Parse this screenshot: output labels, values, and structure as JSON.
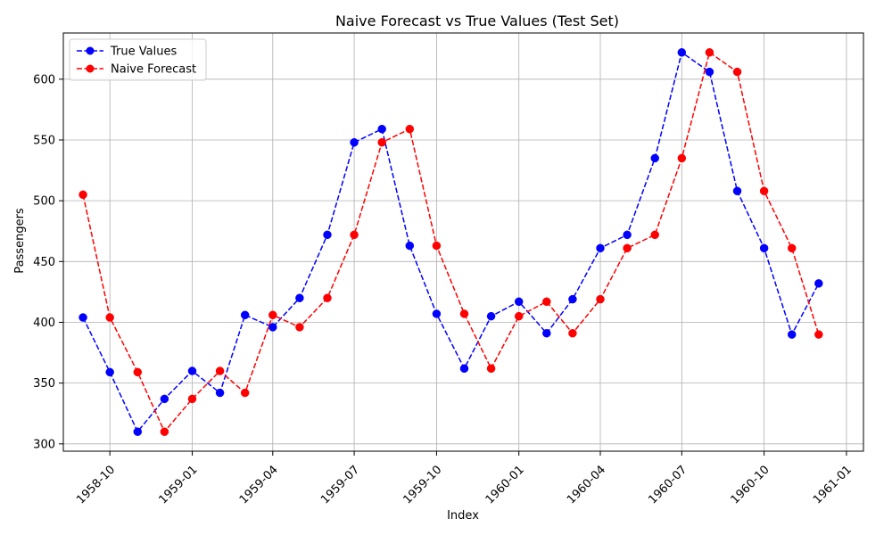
{
  "chart_data": {
    "type": "line",
    "title": "Naive Forecast vs True Values (Test Set)",
    "xlabel": "Index",
    "ylabel": "Passengers",
    "x": [
      "1958-09",
      "1958-10",
      "1958-11",
      "1958-12",
      "1959-01",
      "1959-02",
      "1959-03",
      "1959-04",
      "1959-05",
      "1959-06",
      "1959-07",
      "1959-08",
      "1959-09",
      "1959-10",
      "1959-11",
      "1959-12",
      "1960-01",
      "1960-02",
      "1960-03",
      "1960-04",
      "1960-05",
      "1960-06",
      "1960-07",
      "1960-08",
      "1960-09",
      "1960-10",
      "1960-11",
      "1960-12"
    ],
    "x_ticks": [
      "1958-10",
      "1959-01",
      "1959-04",
      "1959-07",
      "1959-10",
      "1960-01",
      "1960-04",
      "1960-07",
      "1960-10",
      "1961-01"
    ],
    "x_range": [
      "1958-08-10",
      "1961-01-20"
    ],
    "y_ticks": [
      300,
      350,
      400,
      450,
      500,
      550,
      600
    ],
    "ylim": [
      294,
      638
    ],
    "grid": true,
    "legend_position": "top-left",
    "series": [
      {
        "name": "True Values",
        "color": "#0000ff",
        "line_style": "dashed",
        "marker": "circle",
        "values": [
          404,
          359,
          310,
          337,
          360,
          342,
          406,
          396,
          420,
          472,
          548,
          559,
          463,
          407,
          362,
          405,
          417,
          391,
          419,
          461,
          472,
          535,
          622,
          606,
          508,
          461,
          390,
          432
        ]
      },
      {
        "name": "Naive Forecast",
        "color": "#ff0000",
        "line_style": "dashed",
        "marker": "circle",
        "values": [
          505,
          404,
          359,
          310,
          337,
          360,
          342,
          406,
          396,
          420,
          472,
          548,
          559,
          463,
          407,
          362,
          405,
          417,
          391,
          419,
          461,
          472,
          535,
          622,
          606,
          508,
          461,
          390
        ]
      }
    ]
  }
}
